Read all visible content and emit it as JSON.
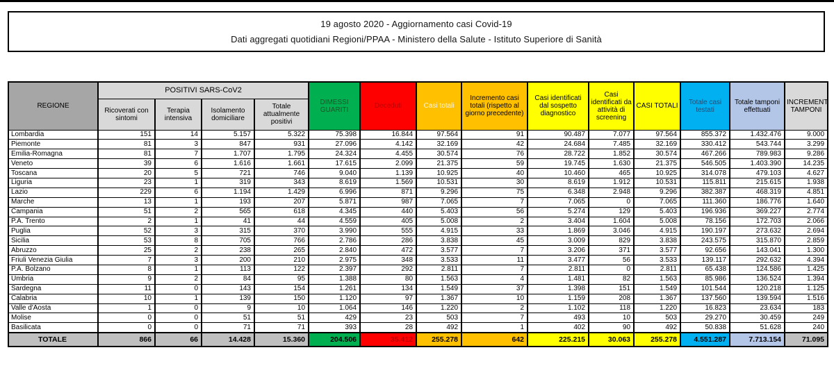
{
  "title": {
    "line1": "19 agosto 2020 - Aggiornamento casi Covid-19",
    "line2": "Dati aggregati quotidiani Regioni/PPAA - Ministero della Salute - Istituto Superiore di Sanità"
  },
  "colors": {
    "green": "#00b050",
    "red": "#ff0000",
    "orange": "#ffc000",
    "yellow": "#ffff00",
    "cyan": "#00b0f0",
    "light_blue": "#b4c6e7",
    "regione_header_gray": "#a6a6a6",
    "subheader_gray": "#d9d9d9",
    "total_row_gray": "#bfbfbf",
    "deceduti_text": "#c00000",
    "testati_text": "#1f4e79"
  },
  "table": {
    "header": {
      "regione": "REGIONE",
      "positivi_group": "POSITIVI SARS-CoV2",
      "ricoverati": "Ricoverati con sintomi",
      "terapia": "Terapia intensiva",
      "isolamento": "Isolamento domiciliare",
      "totale_attualmente": "Totale attualmente positivi",
      "dimessi": "DIMESSI GUARITI",
      "deceduti": "Deceduti",
      "casi_totali": "Casi totali",
      "incremento_casi": "Incremento casi totali (rispetto al giorno precedente)",
      "sospetto": "Casi identificati dal sospetto diagnostico",
      "screening": "Casi identificati da attività di screening",
      "casi_totali_maiusc": "CASI TOTALI",
      "testati": "Totale casi testati",
      "tamponi": "Totale tamponi effettuati",
      "incremento_tamponi": "INCREMENTO TAMPONI"
    },
    "rows": [
      [
        "Lombardia",
        "151",
        "14",
        "5.157",
        "5.322",
        "75.398",
        "16.844",
        "97.564",
        "91",
        "90.487",
        "7.077",
        "97.564",
        "855.372",
        "1.432.476",
        "9.000"
      ],
      [
        "Piemonte",
        "81",
        "3",
        "847",
        "931",
        "27.096",
        "4.142",
        "32.169",
        "42",
        "24.684",
        "7.485",
        "32.169",
        "330.412",
        "543.744",
        "3.299"
      ],
      [
        "Emilia-Romagna",
        "81",
        "7",
        "1.707",
        "1.795",
        "24.324",
        "4.455",
        "30.574",
        "76",
        "28.722",
        "1.852",
        "30.574",
        "467.266",
        "789.983",
        "9.286"
      ],
      [
        "Veneto",
        "39",
        "6",
        "1.616",
        "1.661",
        "17.615",
        "2.099",
        "21.375",
        "59",
        "19.745",
        "1.630",
        "21.375",
        "546.505",
        "1.403.390",
        "14.235"
      ],
      [
        "Toscana",
        "20",
        "5",
        "721",
        "746",
        "9.040",
        "1.139",
        "10.925",
        "40",
        "10.460",
        "465",
        "10.925",
        "314.078",
        "479.103",
        "4.627"
      ],
      [
        "Liguria",
        "23",
        "1",
        "319",
        "343",
        "8.619",
        "1.569",
        "10.531",
        "30",
        "8.619",
        "1.912",
        "10.531",
        "115.811",
        "215.615",
        "1.938"
      ],
      [
        "Lazio",
        "229",
        "6",
        "1.194",
        "1.429",
        "6.996",
        "871",
        "9.296",
        "75",
        "6.348",
        "2.948",
        "9.296",
        "382.387",
        "468.319",
        "4.851"
      ],
      [
        "Marche",
        "13",
        "1",
        "193",
        "207",
        "5.871",
        "987",
        "7.065",
        "7",
        "7.065",
        "0",
        "7.065",
        "111.360",
        "186.776",
        "1.640"
      ],
      [
        "Campania",
        "51",
        "2",
        "565",
        "618",
        "4.345",
        "440",
        "5.403",
        "56",
        "5.274",
        "129",
        "5.403",
        "196.936",
        "369.227",
        "2.774"
      ],
      [
        "P.A. Trento",
        "2",
        "1",
        "41",
        "44",
        "4.559",
        "405",
        "5.008",
        "2",
        "3.404",
        "1.604",
        "5.008",
        "78.156",
        "172.703",
        "2.066"
      ],
      [
        "Puglia",
        "52",
        "3",
        "315",
        "370",
        "3.990",
        "555",
        "4.915",
        "33",
        "1.869",
        "3.046",
        "4.915",
        "190.197",
        "273.632",
        "2.694"
      ],
      [
        "Sicilia",
        "53",
        "8",
        "705",
        "766",
        "2.786",
        "286",
        "3.838",
        "45",
        "3.009",
        "829",
        "3.838",
        "243.575",
        "315.870",
        "2.859"
      ],
      [
        "Abruzzo",
        "25",
        "2",
        "238",
        "265",
        "2.840",
        "472",
        "3.577",
        "7",
        "3.206",
        "371",
        "3.577",
        "92.656",
        "143.041",
        "1.300"
      ],
      [
        "Friuli Venezia Giulia",
        "7",
        "3",
        "200",
        "210",
        "2.975",
        "348",
        "3.533",
        "11",
        "3.477",
        "56",
        "3.533",
        "139.117",
        "292.632",
        "4.394"
      ],
      [
        "P.A. Bolzano",
        "8",
        "1",
        "113",
        "122",
        "2.397",
        "292",
        "2.811",
        "7",
        "2.811",
        "0",
        "2.811",
        "65.438",
        "124.586",
        "1.425"
      ],
      [
        "Umbria",
        "9",
        "2",
        "84",
        "95",
        "1.388",
        "80",
        "1.563",
        "4",
        "1.481",
        "82",
        "1.563",
        "85.986",
        "136.524",
        "1.394"
      ],
      [
        "Sardegna",
        "11",
        "0",
        "143",
        "154",
        "1.261",
        "134",
        "1.549",
        "37",
        "1.398",
        "151",
        "1.549",
        "101.544",
        "120.218",
        "1.125"
      ],
      [
        "Calabria",
        "10",
        "1",
        "139",
        "150",
        "1.120",
        "97",
        "1.367",
        "10",
        "1.159",
        "208",
        "1.367",
        "137.560",
        "139.594",
        "1.516"
      ],
      [
        "Valle d'Aosta",
        "1",
        "0",
        "9",
        "10",
        "1.064",
        "146",
        "1.220",
        "2",
        "1.102",
        "118",
        "1.220",
        "16.823",
        "23.634",
        "183"
      ],
      [
        "Molise",
        "0",
        "0",
        "51",
        "51",
        "429",
        "23",
        "503",
        "7",
        "493",
        "10",
        "503",
        "29.270",
        "30.459",
        "249"
      ],
      [
        "Basilicata",
        "0",
        "0",
        "71",
        "71",
        "393",
        "28",
        "492",
        "1",
        "402",
        "90",
        "492",
        "50.838",
        "51.628",
        "240"
      ]
    ],
    "total_row": [
      "TOTALE",
      "866",
      "66",
      "14.428",
      "15.360",
      "204.506",
      "35.412",
      "255.278",
      "642",
      "225.215",
      "30.063",
      "255.278",
      "4.551.287",
      "7.713.154",
      "71.095"
    ]
  }
}
